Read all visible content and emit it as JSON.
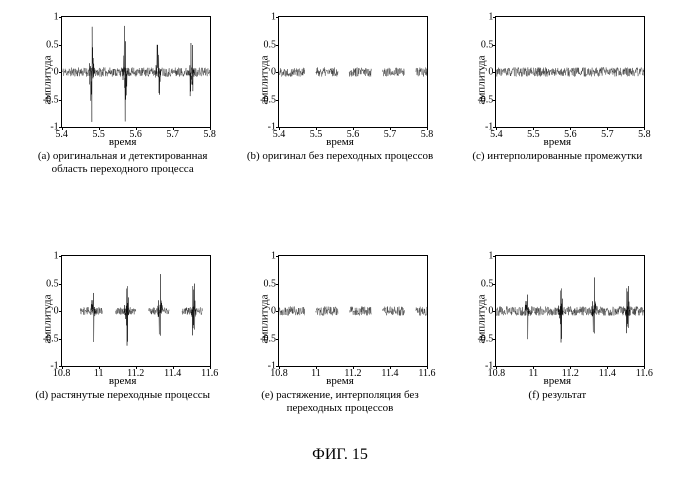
{
  "figure_label": "ФИГ. 15",
  "grid_color": "#000000",
  "noise_color": "#222222",
  "spike_color": "#000000",
  "background_color": "#ffffff",
  "font_family": "Times New Roman",
  "caption_fontsize": 11,
  "tick_fontsize": 10,
  "axis_fontsize": 11,
  "panels": [
    {
      "id": "a",
      "caption": "(a) оригинальная и детектированная область переходного процесса",
      "xlabel": "время",
      "ylabel": "амплитуда",
      "ylim": [
        -1,
        1
      ],
      "xlim": [
        5.4,
        5.8
      ],
      "yticks": [
        -1,
        -0.5,
        0,
        0.5,
        1
      ],
      "xticks": [
        5.4,
        5.5,
        5.6,
        5.7,
        5.8
      ],
      "spikes": [
        5.48,
        5.57,
        5.66,
        5.75
      ],
      "spike_amp": 0.75,
      "gaps": [],
      "noise_level": 0.085,
      "seed": 11
    },
    {
      "id": "b",
      "caption": "(b) оригинал без переходных процессов",
      "xlabel": "время",
      "ylabel": "амплитуда",
      "ylim": [
        -1,
        1
      ],
      "xlim": [
        5.4,
        5.8
      ],
      "yticks": [
        -1,
        -0.5,
        0,
        0.5,
        1
      ],
      "xticks": [
        5.4,
        5.5,
        5.6,
        5.7,
        5.8
      ],
      "spikes": [],
      "spike_amp": 0,
      "gaps": [
        [
          5.47,
          5.5
        ],
        [
          5.56,
          5.59
        ],
        [
          5.65,
          5.68
        ],
        [
          5.74,
          5.77
        ]
      ],
      "noise_level": 0.085,
      "seed": 22
    },
    {
      "id": "c",
      "caption": "(c) интерполированные промежутки",
      "xlabel": "время",
      "ylabel": "амплитуда",
      "ylim": [
        -1,
        1
      ],
      "xlim": [
        5.4,
        5.8
      ],
      "yticks": [
        -1,
        -0.5,
        0,
        0.5,
        1
      ],
      "xticks": [
        5.4,
        5.5,
        5.6,
        5.7,
        5.8
      ],
      "spikes": [],
      "spike_amp": 0,
      "gaps": [],
      "noise_level": 0.085,
      "seed": 33
    },
    {
      "id": "d",
      "caption": "(d) растянутые переходные процессы",
      "xlabel": "время",
      "ylabel": "амплитуда",
      "ylim": [
        -1,
        1
      ],
      "xlim": [
        10.8,
        11.6
      ],
      "yticks": [
        -1,
        -0.5,
        0,
        0.5,
        1
      ],
      "xticks": [
        10.8,
        11,
        11.2,
        11.4,
        11.6
      ],
      "spikes": [
        10.97,
        11.15,
        11.33,
        11.51
      ],
      "spike_amp": 0.55,
      "gaps": [
        [
          10.8,
          10.9
        ],
        [
          11.02,
          11.09
        ],
        [
          11.2,
          11.27
        ],
        [
          11.38,
          11.45
        ],
        [
          11.56,
          11.6
        ]
      ],
      "noise_level": 0.07,
      "seed": 44
    },
    {
      "id": "e",
      "caption": "(e) растяжение, интерполяция без переходных процессов",
      "xlabel": "время",
      "ylabel": "амплитуда",
      "ylim": [
        -1,
        1
      ],
      "xlim": [
        10.8,
        11.6
      ],
      "yticks": [
        -1,
        -0.5,
        0,
        0.5,
        1
      ],
      "xticks": [
        10.8,
        11,
        11.2,
        11.4,
        11.6
      ],
      "spikes": [],
      "spike_amp": 0,
      "gaps": [
        [
          10.94,
          11.0
        ],
        [
          11.12,
          11.18
        ],
        [
          11.3,
          11.36
        ],
        [
          11.48,
          11.54
        ]
      ],
      "noise_level": 0.085,
      "seed": 55
    },
    {
      "id": "f",
      "caption": "(f) результат",
      "xlabel": "время",
      "ylabel": "амплитуда",
      "ylim": [
        -1,
        1
      ],
      "xlim": [
        10.8,
        11.6
      ],
      "yticks": [
        -1,
        -0.5,
        0,
        0.5,
        1
      ],
      "xticks": [
        10.8,
        11,
        11.2,
        11.4,
        11.6
      ],
      "spikes": [
        10.97,
        11.15,
        11.33,
        11.51
      ],
      "spike_amp": 0.5,
      "gaps": [],
      "noise_level": 0.085,
      "seed": 66
    }
  ]
}
